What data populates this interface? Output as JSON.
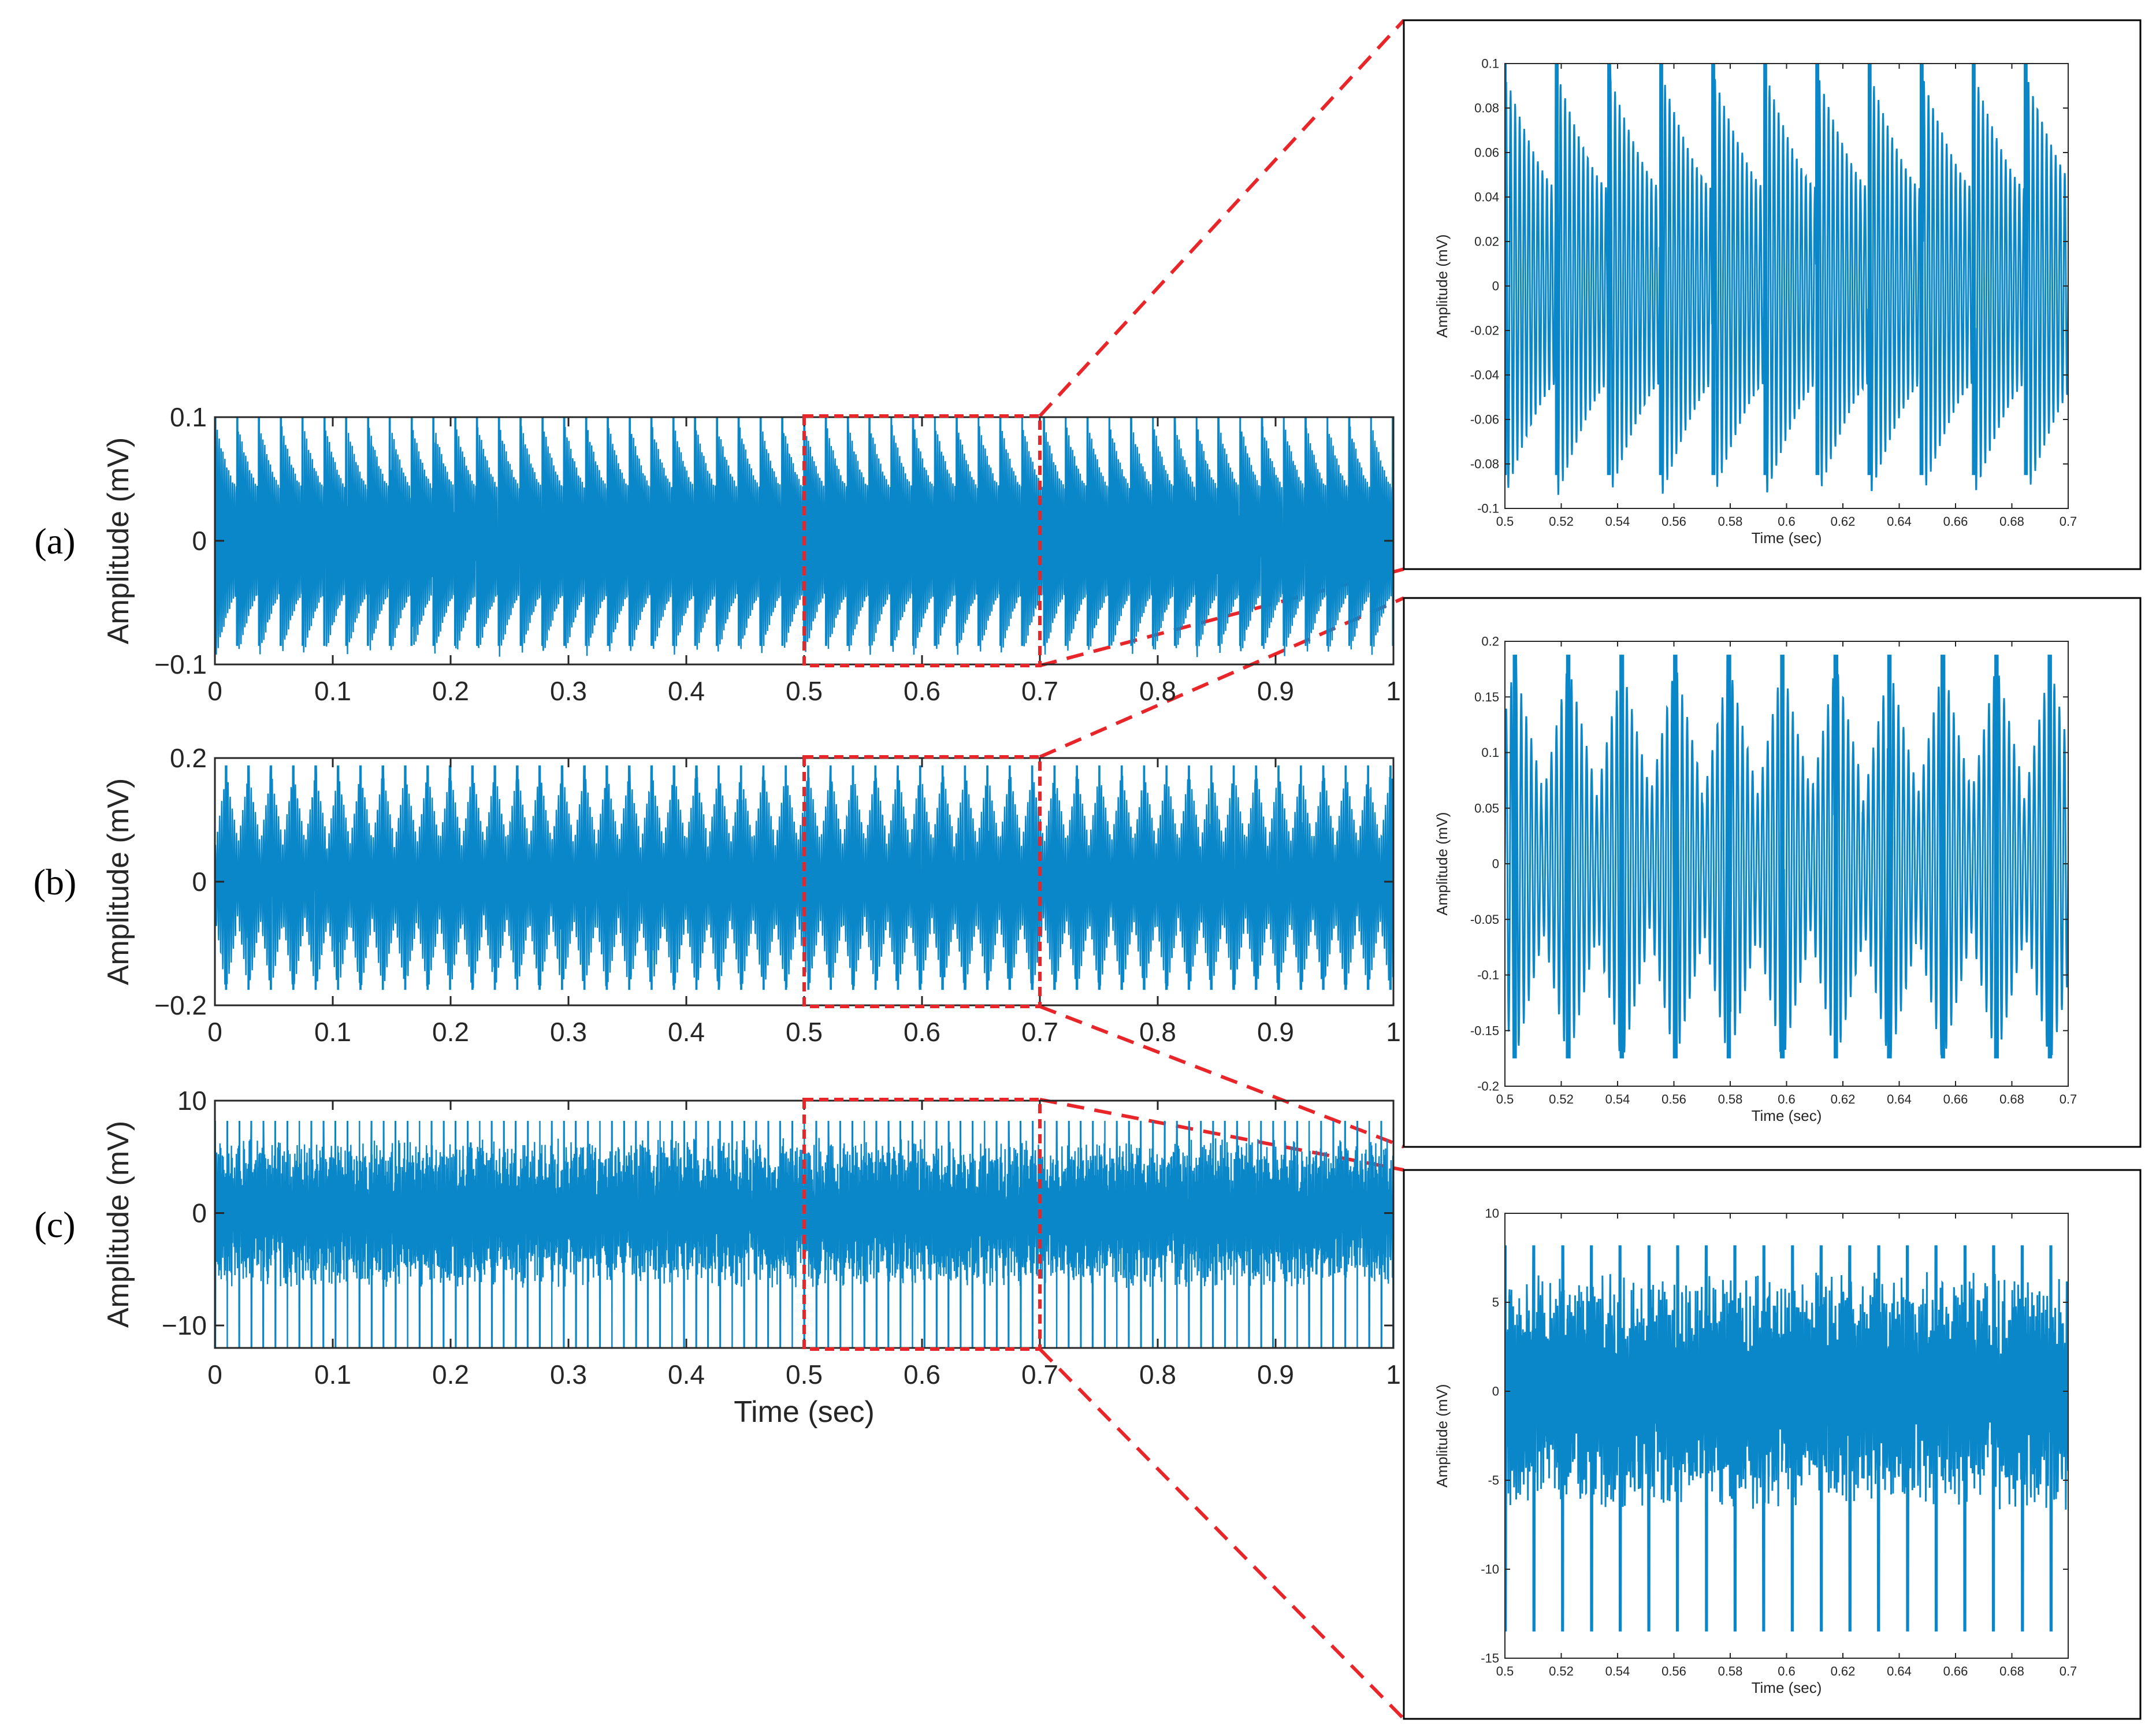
{
  "colors": {
    "signal": "#0a87c8",
    "axis": "#262626",
    "zoom_box": "#e8262a",
    "frame": "#000000"
  },
  "chart_data": [
    {
      "id": "a",
      "panel_label": "(a)",
      "type": "line",
      "xlabel": "",
      "ylabel": "Amplitude (mV)",
      "xlim": [
        0,
        1
      ],
      "ylim": [
        -0.1,
        0.1
      ],
      "x_ticks": [
        "0",
        "0.1",
        "0.2",
        "0.3",
        "0.4",
        "0.5",
        "0.6",
        "0.7",
        "0.8",
        "0.9",
        "1"
      ],
      "y_ticks": [
        {
          "value": -0.1,
          "label": "−0.1"
        },
        {
          "value": 0,
          "label": "0"
        },
        {
          "value": 0.1,
          "label": "0.1"
        }
      ],
      "signal": {
        "cycle_period_sec": 0.0185,
        "peak_max": 0.1,
        "peak_min": -0.088
      },
      "zoom_window": [
        0.5,
        0.7
      ]
    },
    {
      "id": "b",
      "panel_label": "(b)",
      "type": "line",
      "xlabel": "",
      "ylabel": "Amplitude (mV)",
      "xlim": [
        0,
        1
      ],
      "ylim": [
        -0.2,
        0.2
      ],
      "x_ticks": [
        "0",
        "0.1",
        "0.2",
        "0.3",
        "0.4",
        "0.5",
        "0.6",
        "0.7",
        "0.8",
        "0.9",
        "1"
      ],
      "y_ticks": [
        {
          "value": -0.2,
          "label": "−0.2"
        },
        {
          "value": 0,
          "label": "0"
        },
        {
          "value": 0.2,
          "label": "0.2"
        }
      ],
      "signal": {
        "cycle_period_sec": 0.019,
        "peak_max": 0.19,
        "peak_min": -0.175
      },
      "zoom_window": [
        0.5,
        0.7
      ]
    },
    {
      "id": "c",
      "panel_label": "(c)",
      "type": "line",
      "xlabel": "Time (sec)",
      "ylabel": "Amplitude (mV)",
      "xlim": [
        0,
        1
      ],
      "ylim": [
        -12,
        10
      ],
      "x_ticks": [
        "0",
        "0.1",
        "0.2",
        "0.3",
        "0.4",
        "0.5",
        "0.6",
        "0.7",
        "0.8",
        "0.9",
        "1"
      ],
      "y_ticks": [
        {
          "value": -10,
          "label": "−10"
        },
        {
          "value": 0,
          "label": "0"
        },
        {
          "value": 10,
          "label": "10"
        }
      ],
      "signal": {
        "cycle_period_sec": 0.0102,
        "peak_max": 8.4,
        "peak_min": -14
      },
      "zoom_window": [
        0.5,
        0.7
      ]
    }
  ],
  "zoom_charts": [
    {
      "id": "a-zoom",
      "type": "line",
      "xlabel": "Time (sec)",
      "ylabel": "Amplitude (mV)",
      "xlim": [
        0.5,
        0.7
      ],
      "ylim": [
        -0.1,
        0.1
      ],
      "x_ticks": [
        "0.5",
        "0.52",
        "0.54",
        "0.56",
        "0.58",
        "0.6",
        "0.62",
        "0.64",
        "0.66",
        "0.68",
        "0.7"
      ],
      "y_ticks": [
        {
          "value": -0.1,
          "label": "-0.1"
        },
        {
          "value": -0.08,
          "label": "-0.08"
        },
        {
          "value": -0.06,
          "label": "-0.06"
        },
        {
          "value": -0.04,
          "label": "-0.04"
        },
        {
          "value": -0.02,
          "label": "-0.02"
        },
        {
          "value": 0,
          "label": "0"
        },
        {
          "value": 0.02,
          "label": "0.02"
        },
        {
          "value": 0.04,
          "label": "0.04"
        },
        {
          "value": 0.06,
          "label": "0.06"
        },
        {
          "value": 0.08,
          "label": "0.08"
        },
        {
          "value": 0.1,
          "label": "0.1"
        }
      ]
    },
    {
      "id": "b-zoom",
      "type": "line",
      "xlabel": "Time (sec)",
      "ylabel": "Amplitude (mV)",
      "xlim": [
        0.5,
        0.7
      ],
      "ylim": [
        -0.2,
        0.2
      ],
      "x_ticks": [
        "0.5",
        "0.52",
        "0.54",
        "0.56",
        "0.58",
        "0.6",
        "0.62",
        "0.64",
        "0.66",
        "0.68",
        "0.7"
      ],
      "y_ticks": [
        {
          "value": -0.2,
          "label": "-0.2"
        },
        {
          "value": -0.15,
          "label": "-0.15"
        },
        {
          "value": -0.1,
          "label": "-0.1"
        },
        {
          "value": -0.05,
          "label": "-0.05"
        },
        {
          "value": 0,
          "label": "0"
        },
        {
          "value": 0.05,
          "label": "0.05"
        },
        {
          "value": 0.1,
          "label": "0.1"
        },
        {
          "value": 0.15,
          "label": "0.15"
        },
        {
          "value": 0.2,
          "label": "0.2"
        }
      ]
    },
    {
      "id": "c-zoom",
      "type": "line",
      "xlabel": "Time (sec)",
      "ylabel": "Amplitude (mV)",
      "xlim": [
        0.5,
        0.7
      ],
      "ylim": [
        -15,
        10
      ],
      "x_ticks": [
        "0.5",
        "0.52",
        "0.54",
        "0.56",
        "0.58",
        "0.6",
        "0.62",
        "0.64",
        "0.66",
        "0.68",
        "0.7"
      ],
      "y_ticks": [
        {
          "value": -15,
          "label": "-15"
        },
        {
          "value": -10,
          "label": "-10"
        },
        {
          "value": -5,
          "label": "-5"
        },
        {
          "value": 0,
          "label": "0"
        },
        {
          "value": 5,
          "label": "5"
        },
        {
          "value": 10,
          "label": "10"
        }
      ]
    }
  ]
}
